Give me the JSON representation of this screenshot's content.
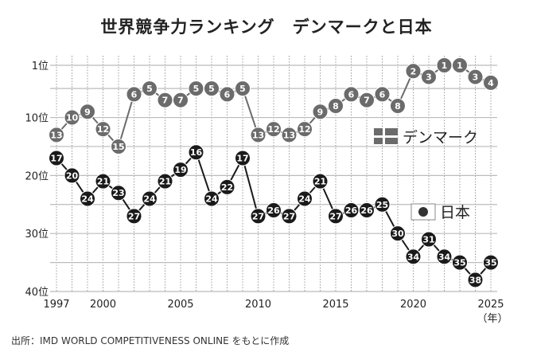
{
  "chart_data": {
    "type": "line",
    "title": "世界競争力ランキング　デンマークと日本",
    "source": "出所：IMD WORLD COMPETITIVENESS ONLINE をもとに作成",
    "xlabel": "（年）",
    "x": [
      1997,
      1998,
      1999,
      2000,
      2001,
      2002,
      2003,
      2004,
      2005,
      2006,
      2007,
      2008,
      2009,
      2010,
      2011,
      2012,
      2013,
      2014,
      2015,
      2016,
      2017,
      2018,
      2019,
      2020,
      2021,
      2022,
      2023,
      2024,
      2025
    ],
    "x_tick_labels": [
      "1997",
      "2000",
      "2005",
      "2010",
      "2015",
      "2020",
      "2025"
    ],
    "y_tick_labels": [
      "1位",
      "10位",
      "20位",
      "30位",
      "40位"
    ],
    "y_ticks": [
      1,
      10,
      20,
      30,
      40
    ],
    "ylim": [
      1,
      40
    ],
    "y_inverted": true,
    "grid": true,
    "series": [
      {
        "name": "デンマーク",
        "color": "#6b6b6b",
        "values": [
          13,
          10,
          9,
          12,
          15,
          6,
          5,
          7,
          7,
          5,
          5,
          6,
          5,
          13,
          12,
          13,
          12,
          9,
          8,
          6,
          7,
          6,
          8,
          2,
          3,
          1,
          1,
          3,
          4
        ]
      },
      {
        "name": "日本",
        "color": "#1a1a1a",
        "values": [
          17,
          20,
          24,
          21,
          23,
          27,
          24,
          21,
          19,
          16,
          24,
          22,
          17,
          27,
          26,
          27,
          24,
          21,
          27,
          26,
          26,
          25,
          30,
          34,
          31,
          34,
          35,
          38,
          35
        ]
      }
    ]
  }
}
